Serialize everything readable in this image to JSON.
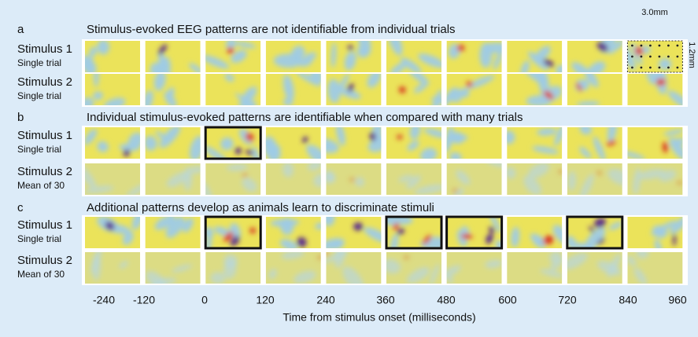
{
  "panels": [
    {
      "label": "a",
      "title": "Stimulus-evoked EEG patterns are not identifiable from individual trials",
      "rows": [
        {
          "stimulus": "Stimulus 1",
          "condition": "Single trial"
        },
        {
          "stimulus": "Stimulus 2",
          "condition": "Single trial"
        }
      ]
    },
    {
      "label": "b",
      "title": "Individual stimulus-evoked patterns are identifiable when compared with many trials",
      "rows": [
        {
          "stimulus": "Stimulus 1",
          "condition": "Single trial"
        },
        {
          "stimulus": "Stimulus 2",
          "condition": "Mean of 30"
        }
      ]
    },
    {
      "label": "c",
      "title": "Additional patterns develop as animals learn to discriminate stimuli",
      "rows": [
        {
          "stimulus": "Stimulus 1",
          "condition": "Single trial"
        },
        {
          "stimulus": "Stimulus 2",
          "condition": "Mean of 30"
        }
      ]
    }
  ],
  "scale": {
    "width": "3.0mm",
    "height": "1.2mm"
  },
  "axis": {
    "ticks": [
      "-240",
      "-120",
      "0",
      "120",
      "240",
      "360",
      "480",
      "600",
      "720",
      "840",
      "960"
    ],
    "title": "Time from stimulus onset (milliseconds)"
  }
}
